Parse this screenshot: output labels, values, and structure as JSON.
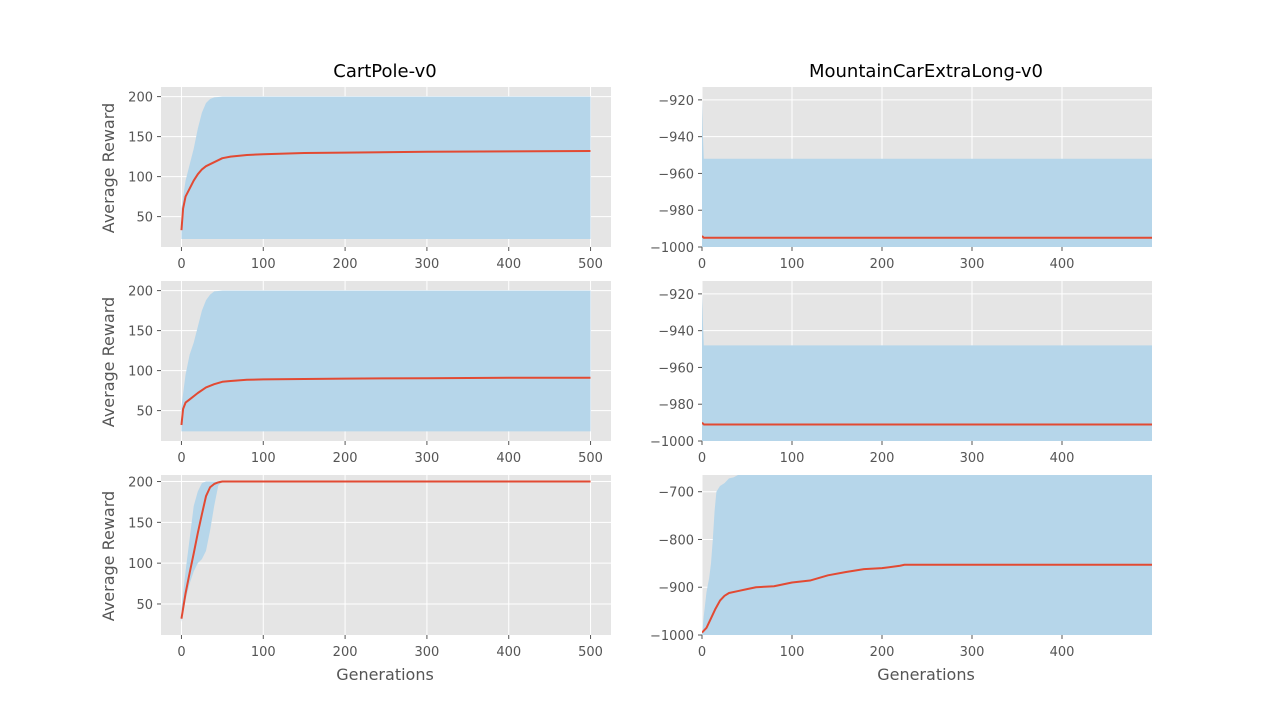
{
  "figure": {
    "titles": [
      "CartPole-v0",
      "MountainCarExtraLong-v0"
    ],
    "ylabel": "Average Reward",
    "xlabel": "Generations"
  },
  "colors": {
    "panel_background": "#e5e5e5",
    "grid": "#ffffff",
    "band": "#b6d6ea",
    "mean_line": "#e24a33",
    "tick_text": "#555555"
  },
  "chart_data": [
    {
      "type": "area",
      "title": "CartPole-v0",
      "ylabel": "Average Reward",
      "xlabel": "",
      "xlim": [
        -25,
        525
      ],
      "ylim": [
        12,
        212
      ],
      "xticks": [
        0,
        100,
        200,
        300,
        400,
        500
      ],
      "yticks": [
        50,
        100,
        150,
        200
      ],
      "grid": true,
      "band_upper": [
        [
          0,
          60
        ],
        [
          5,
          95
        ],
        [
          10,
          115
        ],
        [
          15,
          135
        ],
        [
          20,
          160
        ],
        [
          25,
          180
        ],
        [
          30,
          192
        ],
        [
          35,
          197
        ],
        [
          40,
          199
        ],
        [
          50,
          200
        ],
        [
          500,
          200
        ]
      ],
      "band_lower": [
        [
          0,
          22
        ],
        [
          500,
          22
        ]
      ],
      "series": [
        {
          "values": [
            [
              0,
              33
            ],
            [
              2,
              60
            ],
            [
              5,
              75
            ],
            [
              10,
              85
            ],
            [
              15,
              95
            ],
            [
              20,
              103
            ],
            [
              25,
              109
            ],
            [
              30,
              113
            ],
            [
              40,
              118
            ],
            [
              50,
              123
            ],
            [
              60,
              125
            ],
            [
              80,
              127
            ],
            [
              100,
              128
            ],
            [
              150,
              129.5
            ],
            [
              200,
              130
            ],
            [
              300,
              131
            ],
            [
              400,
              131.5
            ],
            [
              500,
              132
            ]
          ]
        }
      ]
    },
    {
      "type": "area",
      "title": "MountainCarExtraLong-v0",
      "ylabel": "",
      "xlabel": "",
      "xlim": [
        0,
        500
      ],
      "ylim": [
        -1000,
        -913
      ],
      "xticks": [
        0,
        100,
        200,
        300,
        400
      ],
      "yticks": [
        -1000,
        -980,
        -960,
        -940,
        -920
      ],
      "grid": true,
      "band_upper": [
        [
          0,
          -920
        ],
        [
          1,
          -940
        ],
        [
          2,
          -952
        ],
        [
          500,
          -952
        ]
      ],
      "band_lower": [
        [
          0,
          -1000
        ],
        [
          500,
          -1000
        ]
      ],
      "series": [
        {
          "values": [
            [
              0,
              -994
            ],
            [
              2,
              -995
            ],
            [
              5,
              -995
            ],
            [
              500,
              -995
            ]
          ]
        }
      ]
    },
    {
      "type": "area",
      "title": "",
      "ylabel": "Average Reward",
      "xlabel": "",
      "xlim": [
        -25,
        525
      ],
      "ylim": [
        12,
        212
      ],
      "xticks": [
        0,
        100,
        200,
        300,
        400,
        500
      ],
      "yticks": [
        50,
        100,
        150,
        200
      ],
      "grid": true,
      "band_upper": [
        [
          0,
          55
        ],
        [
          5,
          95
        ],
        [
          10,
          120
        ],
        [
          15,
          135
        ],
        [
          20,
          155
        ],
        [
          25,
          175
        ],
        [
          30,
          188
        ],
        [
          35,
          195
        ],
        [
          40,
          199
        ],
        [
          50,
          200
        ],
        [
          500,
          200
        ]
      ],
      "band_lower": [
        [
          0,
          24
        ],
        [
          500,
          24
        ]
      ],
      "series": [
        {
          "values": [
            [
              0,
              32
            ],
            [
              2,
              52
            ],
            [
              5,
              60
            ],
            [
              10,
              64
            ],
            [
              20,
              72
            ],
            [
              30,
              79
            ],
            [
              40,
              83
            ],
            [
              50,
              86
            ],
            [
              60,
              87
            ],
            [
              80,
              88.5
            ],
            [
              100,
              89
            ],
            [
              200,
              90
            ],
            [
              300,
              90.5
            ],
            [
              400,
              91
            ],
            [
              500,
              91
            ]
          ]
        }
      ]
    },
    {
      "type": "area",
      "title": "",
      "ylabel": "",
      "xlabel": "",
      "xlim": [
        0,
        500
      ],
      "ylim": [
        -1000,
        -913
      ],
      "xticks": [
        0,
        100,
        200,
        300,
        400
      ],
      "yticks": [
        -1000,
        -980,
        -960,
        -940,
        -920
      ],
      "grid": true,
      "band_upper": [
        [
          0,
          -920
        ],
        [
          1,
          -935
        ],
        [
          2,
          -948
        ],
        [
          500,
          -948
        ]
      ],
      "band_lower": [
        [
          0,
          -1000
        ],
        [
          500,
          -1000
        ]
      ],
      "series": [
        {
          "values": [
            [
              0,
              -990
            ],
            [
              2,
              -991
            ],
            [
              5,
              -991
            ],
            [
              500,
              -991
            ]
          ]
        }
      ]
    },
    {
      "type": "area",
      "title": "",
      "ylabel": "Average Reward",
      "xlabel": "Generations",
      "xlim": [
        -25,
        525
      ],
      "ylim": [
        12,
        208
      ],
      "xticks": [
        0,
        100,
        200,
        300,
        400,
        500
      ],
      "yticks": [
        50,
        100,
        150,
        200
      ],
      "grid": true,
      "band_upper": [
        [
          0,
          45
        ],
        [
          5,
          90
        ],
        [
          10,
          130
        ],
        [
          15,
          170
        ],
        [
          20,
          188
        ],
        [
          25,
          198
        ],
        [
          30,
          200
        ],
        [
          500,
          200
        ]
      ],
      "band_lower": [
        [
          0,
          28
        ],
        [
          5,
          55
        ],
        [
          10,
          75
        ],
        [
          15,
          90
        ],
        [
          20,
          100
        ],
        [
          25,
          105
        ],
        [
          30,
          115
        ],
        [
          35,
          140
        ],
        [
          40,
          170
        ],
        [
          45,
          195
        ],
        [
          50,
          200
        ],
        [
          500,
          200
        ]
      ],
      "series": [
        {
          "values": [
            [
              0,
              32
            ],
            [
              5,
              63
            ],
            [
              10,
              88
            ],
            [
              15,
              112
            ],
            [
              20,
              137
            ],
            [
              25,
              160
            ],
            [
              30,
              182
            ],
            [
              35,
              193
            ],
            [
              40,
              197
            ],
            [
              45,
              199
            ],
            [
              50,
              200
            ],
            [
              500,
              200
            ]
          ]
        }
      ]
    },
    {
      "type": "area",
      "title": "",
      "ylabel": "",
      "xlabel": "Generations",
      "xlim": [
        0,
        500
      ],
      "ylim": [
        -1000,
        -665
      ],
      "xticks": [
        0,
        100,
        200,
        300,
        400
      ],
      "yticks": [
        -1000,
        -900,
        -800,
        -700
      ],
      "grid": true,
      "band_upper": [
        [
          0,
          -1000
        ],
        [
          2,
          -960
        ],
        [
          5,
          -910
        ],
        [
          8,
          -880
        ],
        [
          10,
          -850
        ],
        [
          12,
          -800
        ],
        [
          14,
          -740
        ],
        [
          16,
          -700
        ],
        [
          20,
          -688
        ],
        [
          25,
          -682
        ],
        [
          30,
          -672
        ],
        [
          35,
          -670
        ],
        [
          40,
          -665
        ],
        [
          500,
          -665
        ]
      ],
      "band_lower": [
        [
          0,
          -1000
        ],
        [
          500,
          -1000
        ]
      ],
      "series": [
        {
          "values": [
            [
              0,
              -995
            ],
            [
              5,
              -985
            ],
            [
              10,
              -965
            ],
            [
              15,
              -945
            ],
            [
              20,
              -928
            ],
            [
              25,
              -918
            ],
            [
              30,
              -912
            ],
            [
              40,
              -908
            ],
            [
              50,
              -904
            ],
            [
              60,
              -900
            ],
            [
              80,
              -898
            ],
            [
              100,
              -890
            ],
            [
              120,
              -886
            ],
            [
              140,
              -875
            ],
            [
              160,
              -868
            ],
            [
              180,
              -862
            ],
            [
              200,
              -860
            ],
            [
              220,
              -855
            ],
            [
              225,
              -853
            ],
            [
              500,
              -853
            ]
          ]
        }
      ]
    }
  ]
}
